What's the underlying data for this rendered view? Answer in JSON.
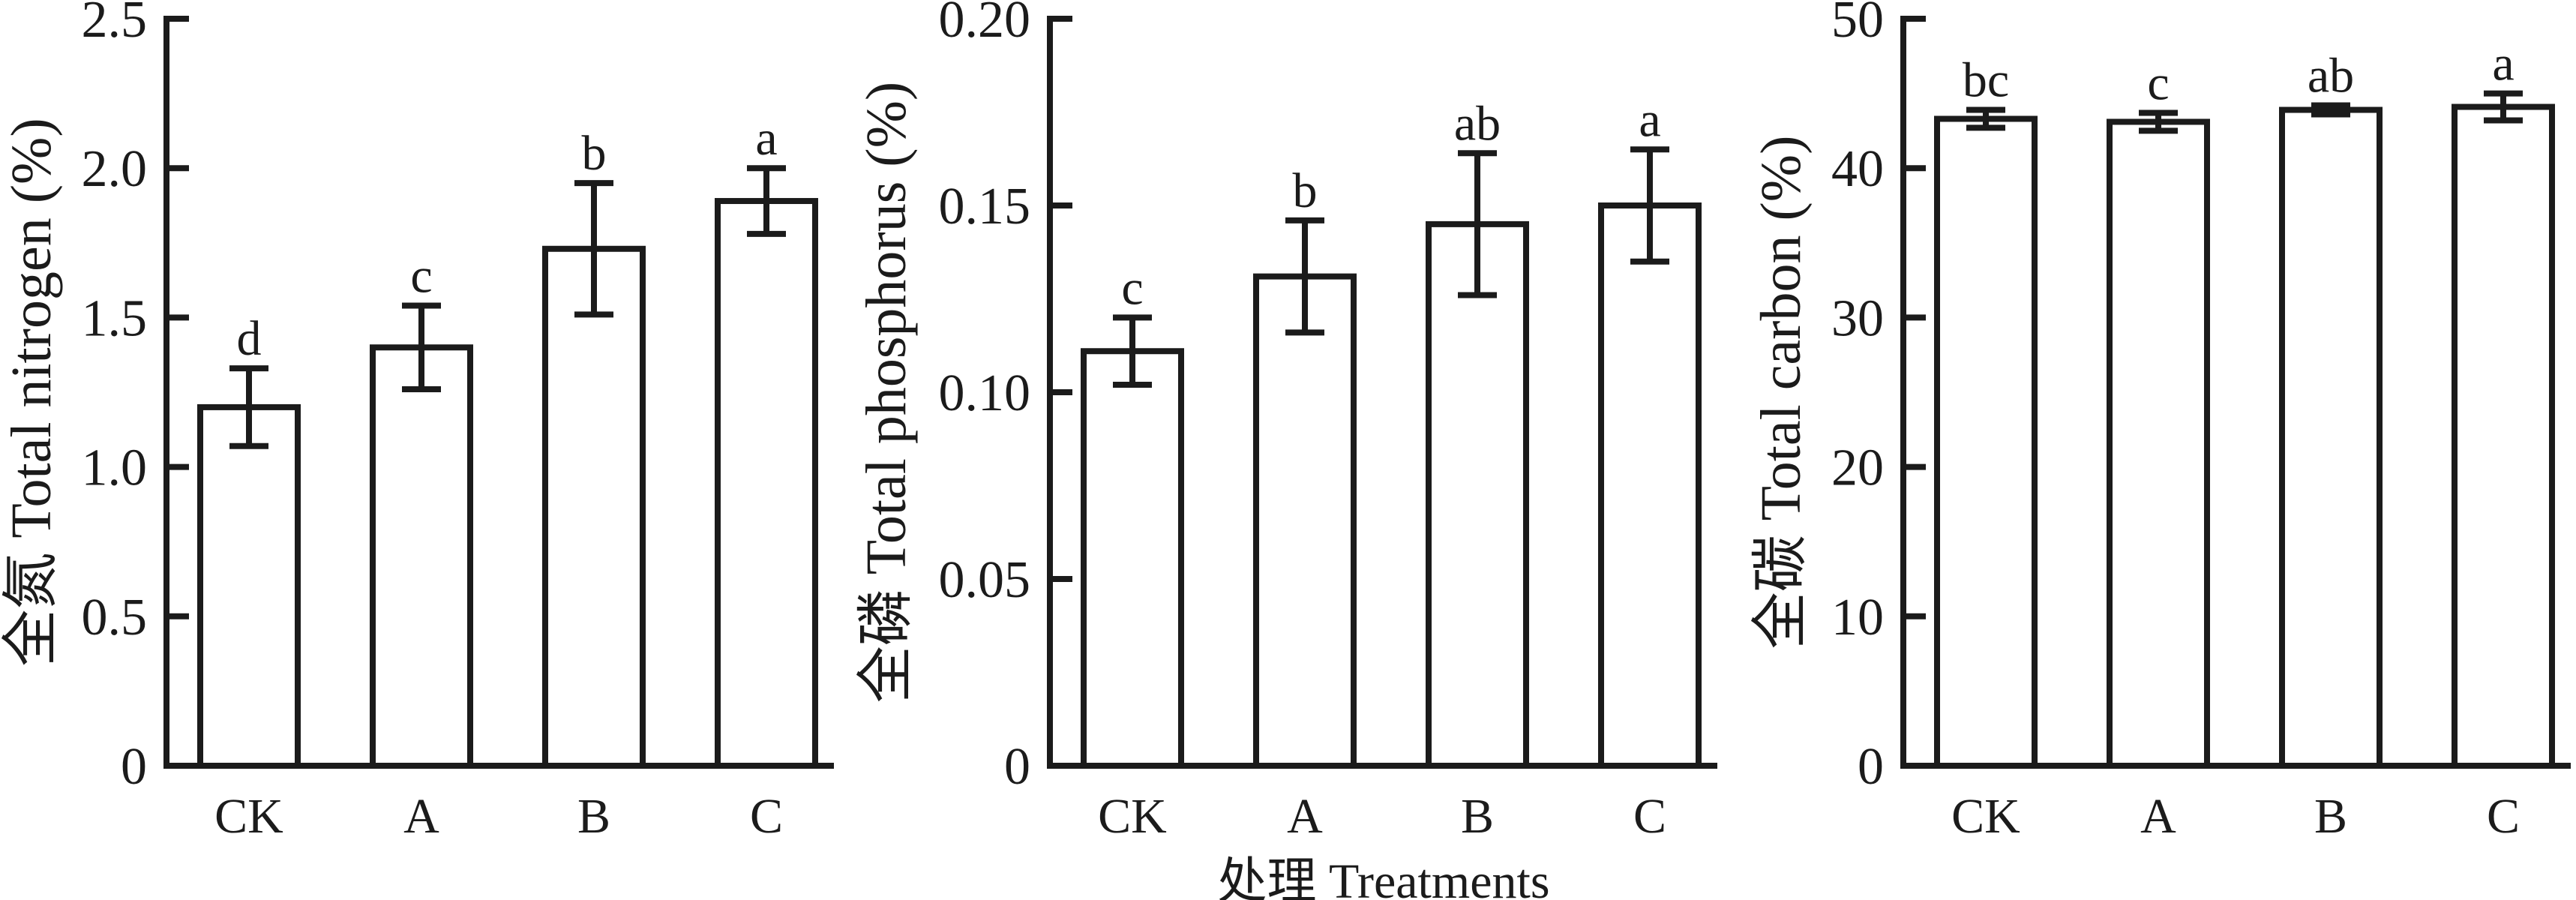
{
  "figure": {
    "background": "#ffffff",
    "ink_color": "#1b1b1b",
    "bar_fill": "#ffffff",
    "x_axis_title": "处理 Treatments"
  },
  "chart_data": [
    {
      "id": "total-nitrogen",
      "type": "bar",
      "title": "",
      "ylabel": "全氮 Total nitrogen (%)",
      "xlabel": "",
      "categories": [
        "CK",
        "A",
        "B",
        "C"
      ],
      "values": [
        1.2,
        1.4,
        1.73,
        1.89
      ],
      "errors": [
        0.13,
        0.14,
        0.22,
        0.11
      ],
      "sig_letters": [
        "d",
        "c",
        "b",
        "a"
      ],
      "ylim": [
        0,
        2.5
      ],
      "yticks": [
        0,
        0.5,
        1.0,
        1.5,
        2.0,
        2.5
      ],
      "ytick_labels": [
        "0",
        "0.5",
        "1.0",
        "1.5",
        "2.0",
        "2.5"
      ],
      "grid": false,
      "legend": null
    },
    {
      "id": "total-phosphorus",
      "type": "bar",
      "title": "",
      "ylabel": "全磷 Total phosphorus (%)",
      "xlabel": "处理 Treatments",
      "categories": [
        "CK",
        "A",
        "B",
        "C"
      ],
      "values": [
        0.111,
        0.131,
        0.145,
        0.15
      ],
      "errors": [
        0.009,
        0.015,
        0.019,
        0.015
      ],
      "sig_letters": [
        "c",
        "b",
        "ab",
        "a"
      ],
      "ylim": [
        0,
        0.2
      ],
      "yticks": [
        0,
        0.05,
        0.1,
        0.15,
        0.2
      ],
      "ytick_labels": [
        "0",
        "0.05",
        "0.10",
        "0.15",
        "0.20"
      ],
      "grid": false,
      "legend": null
    },
    {
      "id": "total-carbon",
      "type": "bar",
      "title": "",
      "ylabel": "全碳 Total carbon (%)",
      "xlabel": "",
      "categories": [
        "CK",
        "A",
        "B",
        "C"
      ],
      "values": [
        43.3,
        43.1,
        43.9,
        44.1
      ],
      "errors": [
        0.6,
        0.6,
        0.3,
        0.9
      ],
      "sig_letters": [
        "bc",
        "c",
        "ab",
        "a"
      ],
      "ylim": [
        0,
        50
      ],
      "yticks": [
        0,
        10,
        20,
        30,
        40,
        50
      ],
      "ytick_labels": [
        "0",
        "10",
        "20",
        "30",
        "40",
        "50"
      ],
      "grid": false,
      "legend": null
    }
  ]
}
